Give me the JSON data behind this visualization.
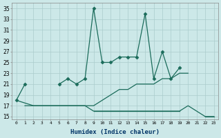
{
  "xlabel": "Humidex (Indice chaleur)",
  "background_color": "#cce8e8",
  "grid_color": "#aacccc",
  "line_color": "#1a6b5a",
  "ylim": [
    14.5,
    36
  ],
  "xlim": [
    -0.5,
    23.5
  ],
  "yticks": [
    15,
    17,
    19,
    21,
    23,
    25,
    27,
    29,
    31,
    33,
    35
  ],
  "xticks": [
    0,
    1,
    2,
    3,
    4,
    5,
    6,
    7,
    8,
    9,
    10,
    11,
    12,
    13,
    14,
    15,
    16,
    17,
    18,
    19,
    20,
    21,
    22,
    23
  ],
  "series_markers": {
    "x": [
      0,
      1,
      2,
      3,
      4,
      5,
      6,
      7,
      8,
      9,
      10,
      11,
      12,
      13,
      14,
      15,
      16,
      17,
      18,
      19
    ],
    "y": [
      18,
      21,
      null,
      null,
      null,
      21,
      22,
      21,
      22,
      35,
      25,
      25,
      26,
      26,
      26,
      34,
      22,
      27,
      22,
      24
    ]
  },
  "series_rise": {
    "x": [
      0,
      2,
      3,
      4,
      5,
      6,
      7,
      8,
      9,
      10,
      11,
      12,
      13,
      14,
      15,
      16,
      17,
      18,
      19,
      20,
      21,
      22,
      23
    ],
    "y": [
      18,
      17,
      17,
      17,
      17,
      17,
      17,
      17,
      17,
      18,
      19,
      20,
      20,
      21,
      21,
      21,
      22,
      22,
      23,
      23,
      null,
      null,
      null
    ]
  },
  "series_flat1": {
    "x": [
      1,
      2,
      3,
      4,
      5,
      6,
      7,
      8,
      9,
      10,
      11,
      12,
      13,
      14,
      15,
      16,
      17,
      18,
      19,
      20,
      21,
      22,
      23
    ],
    "y": [
      17,
      17,
      17,
      17,
      17,
      17,
      17,
      17,
      16,
      16,
      16,
      16,
      16,
      16,
      16,
      16,
      16,
      16,
      16,
      17,
      16,
      15,
      15
    ]
  },
  "series_flat2": {
    "x": [
      9,
      10,
      11,
      12,
      13,
      14,
      15,
      16,
      17,
      18,
      19,
      20,
      21,
      22,
      23
    ],
    "y": [
      16,
      16,
      16,
      16,
      16,
      16,
      16,
      16,
      16,
      16,
      16,
      null,
      null,
      15,
      15
    ]
  }
}
